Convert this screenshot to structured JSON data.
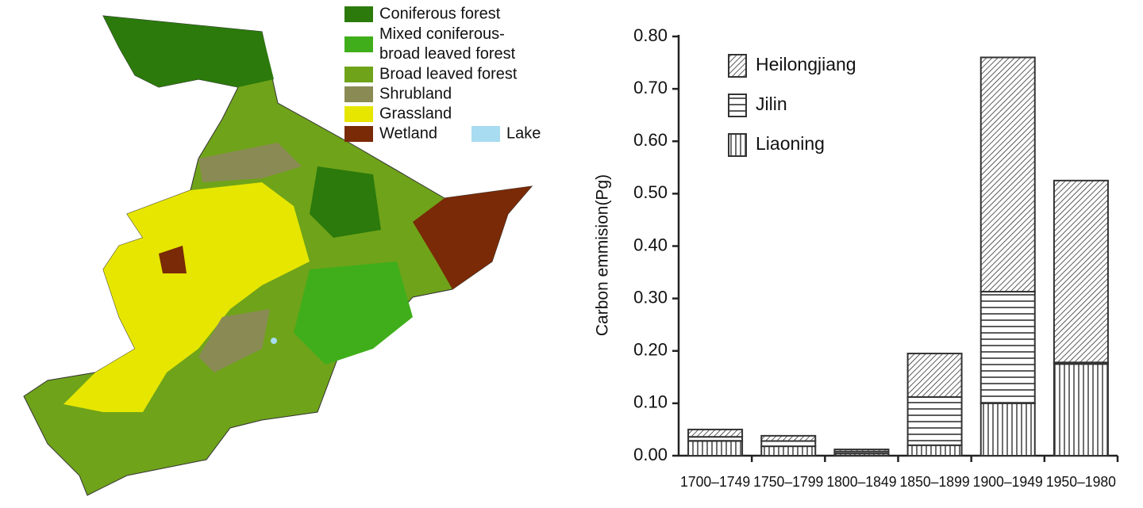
{
  "map_legend": [
    {
      "lines": [
        "Coniferous forest"
      ],
      "color": "#2b7a0b"
    },
    {
      "lines": [
        "Mixed coniferous-",
        "broad leaved forest"
      ],
      "color": "#3fae1a"
    },
    {
      "lines": [
        "Broad leaved forest"
      ],
      "color": "#6fa31a"
    },
    {
      "lines": [
        "Shrubland"
      ],
      "color": "#8a8a55"
    },
    {
      "lines": [
        "Grassland"
      ],
      "color": "#e6e600"
    },
    {
      "lines": [
        "Wetland"
      ],
      "color": "#7a2a06"
    },
    {
      "lines": [
        "Lake"
      ],
      "color": "#a8dcf0"
    }
  ],
  "chart_data": {
    "type": "stacked_bar",
    "y_label": "Carbon emmision(Pg)",
    "categories": [
      "1700–1749",
      "1750–1799",
      "1800–1849",
      "1850–1899",
      "1900–1949",
      "1950–1980"
    ],
    "series": [
      {
        "name": "Liaoning",
        "pattern": "vertical",
        "color": "#333333",
        "values": [
          0.028,
          0.018,
          0.004,
          0.02,
          0.1,
          0.175
        ]
      },
      {
        "name": "Jilin",
        "pattern": "horizontal",
        "color": "#333333",
        "values": [
          0.008,
          0.01,
          0.004,
          0.092,
          0.213,
          0.003
        ]
      },
      {
        "name": "Heilongjiang",
        "pattern": "diagonal",
        "color": "#333333",
        "values": [
          0.014,
          0.01,
          0.004,
          0.083,
          0.447,
          0.347
        ]
      }
    ],
    "ylim": [
      0,
      0.8
    ],
    "yticks": [
      {
        "value": 0,
        "label": "0.00"
      },
      {
        "value": 0.1,
        "label": "0.10"
      },
      {
        "value": 0.2,
        "label": "0.20"
      },
      {
        "value": 0.3,
        "label": "0.30"
      },
      {
        "value": 0.4,
        "label": "0.40"
      },
      {
        "value": 0.5,
        "label": "0.50"
      },
      {
        "value": 0.6,
        "label": "0.60"
      },
      {
        "value": 0.7,
        "label": "0.70"
      },
      {
        "value": 0.8,
        "label": "0.80"
      }
    ],
    "legend": "upper-left"
  }
}
